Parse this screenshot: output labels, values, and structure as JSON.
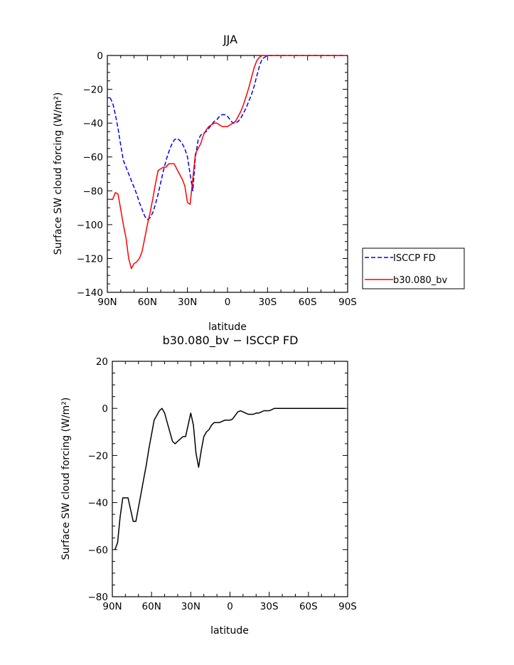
{
  "chart_data": [
    {
      "type": "line",
      "title": "JJA",
      "xlabel": "latitude",
      "ylabel": "Surface SW cloud forcing (W/m²)",
      "xlim": [
        90,
        -90
      ],
      "ylim": [
        -140,
        0
      ],
      "x_ticks": [
        90,
        60,
        30,
        0,
        -30,
        -60,
        -90
      ],
      "x_tick_labels": [
        "90N",
        "60N",
        "30N",
        "0",
        "30S",
        "60S",
        "90S"
      ],
      "y_ticks": [
        0,
        -20,
        -40,
        -60,
        -80,
        -100,
        -120,
        -140
      ],
      "y_tick_labels": [
        "0",
        "−20",
        "−40",
        "−60",
        "−80",
        "−100",
        "−120",
        "−140"
      ],
      "grid": false,
      "legend_position": "outside-right",
      "series": [
        {
          "name": "ISCCP FD",
          "color": "#0000ff",
          "dash": "dashed",
          "x": [
            88,
            86,
            84,
            82,
            80,
            78,
            76,
            74,
            72,
            70,
            68,
            66,
            64,
            62,
            60,
            58,
            56,
            54,
            52,
            50,
            48,
            46,
            44,
            42,
            40,
            38,
            36,
            34,
            32,
            30,
            28,
            26,
            24,
            22,
            20,
            18,
            16,
            14,
            12,
            10,
            8,
            6,
            4,
            2,
            0,
            -2,
            -4,
            -6,
            -8,
            -10,
            -12,
            -14,
            -16,
            -18,
            -20,
            -22,
            -24,
            -26,
            -28,
            -30,
            -32,
            -34,
            -36,
            -38,
            -40,
            -42,
            -44,
            -46,
            -48,
            -50,
            -52,
            -54,
            -56,
            -58,
            -60,
            -62,
            -64,
            -66,
            -68,
            -70,
            -72,
            -74,
            -76,
            -78,
            -80,
            -82,
            -84,
            -86,
            -88
          ],
          "values": [
            -25,
            -28,
            -35,
            -43,
            -53,
            -62,
            -66,
            -70,
            -74,
            -78,
            -82,
            -87,
            -91,
            -95,
            -97,
            -96,
            -93,
            -88,
            -82,
            -75,
            -68,
            -62,
            -57,
            -53,
            -50,
            -49,
            -50,
            -52,
            -55,
            -60,
            -70,
            -80,
            -60,
            -50,
            -47,
            -46,
            -45,
            -43,
            -41,
            -39,
            -38,
            -36,
            -35,
            -35,
            -36,
            -38,
            -40,
            -40,
            -39,
            -37,
            -34,
            -31,
            -27,
            -23,
            -18,
            -12,
            -6,
            -2,
            -1,
            0,
            0,
            0,
            0,
            0,
            0,
            0,
            0,
            0,
            0,
            0,
            0,
            0,
            0,
            0,
            0,
            0,
            0,
            0,
            0,
            0,
            0,
            0,
            0,
            0,
            0,
            0,
            0,
            0,
            0
          ]
        },
        {
          "name": "b30.080_bv",
          "color": "#ff0000",
          "dash": "solid",
          "x": [
            88,
            86,
            84,
            82,
            80,
            78,
            76,
            74,
            72,
            70,
            68,
            66,
            64,
            62,
            60,
            58,
            56,
            54,
            52,
            50,
            48,
            46,
            44,
            42,
            40,
            38,
            36,
            34,
            32,
            30,
            28,
            26,
            24,
            22,
            20,
            18,
            16,
            14,
            12,
            10,
            8,
            6,
            4,
            2,
            0,
            -2,
            -4,
            -6,
            -8,
            -10,
            -12,
            -14,
            -16,
            -18,
            -20,
            -22,
            -24,
            -26,
            -28,
            -30,
            -32,
            -34,
            -36,
            -38,
            -40,
            -42,
            -44,
            -46,
            -48,
            -50,
            -52,
            -54,
            -56,
            -58,
            -60,
            -62,
            -64,
            -66,
            -68,
            -70,
            -72,
            -74,
            -76,
            -78,
            -80,
            -82,
            -84,
            -86,
            -88
          ],
          "values": [
            -85,
            -85,
            -81,
            -82,
            -91,
            -100,
            -108,
            -120,
            -126,
            -123,
            -122,
            -120,
            -116,
            -108,
            -100,
            -93,
            -85,
            -76,
            -68,
            -67,
            -66,
            -66,
            -64,
            -64,
            -64,
            -67,
            -70,
            -73,
            -77,
            -87,
            -88,
            -73,
            -58,
            -55,
            -52,
            -47,
            -44,
            -42,
            -41,
            -40,
            -40,
            -41,
            -42,
            -42,
            -42,
            -41,
            -40,
            -39,
            -36,
            -33,
            -29,
            -24,
            -19,
            -13,
            -7,
            -3,
            -1,
            0,
            0,
            0,
            0,
            0,
            0,
            0,
            0,
            0,
            0,
            0,
            0,
            0,
            0,
            0,
            0,
            0,
            0,
            0,
            0,
            0,
            0,
            0,
            0,
            0,
            0,
            0,
            0,
            0,
            0,
            0,
            0
          ]
        }
      ]
    },
    {
      "type": "line",
      "title": "b30.080_bv − ISCCP FD",
      "xlabel": "latitude",
      "ylabel": "Surface SW cloud forcing (W/m²)",
      "xlim": [
        90,
        -90
      ],
      "ylim": [
        -80,
        20
      ],
      "x_ticks": [
        90,
        60,
        30,
        0,
        -30,
        -60,
        -90
      ],
      "x_tick_labels": [
        "90N",
        "60N",
        "30N",
        "0",
        "30S",
        "60S",
        "90S"
      ],
      "y_ticks": [
        20,
        0,
        -20,
        -40,
        -60,
        -80
      ],
      "y_tick_labels": [
        "20",
        "0",
        "−20",
        "−40",
        "−60",
        "−80"
      ],
      "grid": false,
      "series": [
        {
          "color": "#000000",
          "dash": "solid",
          "x": [
            88,
            86,
            84,
            82,
            80,
            78,
            76,
            74,
            72,
            70,
            68,
            66,
            64,
            62,
            60,
            58,
            56,
            54,
            52,
            50,
            48,
            46,
            44,
            42,
            40,
            38,
            36,
            34,
            32,
            30,
            28,
            26,
            24,
            22,
            20,
            18,
            16,
            14,
            12,
            10,
            8,
            6,
            4,
            2,
            0,
            -2,
            -4,
            -6,
            -8,
            -10,
            -12,
            -14,
            -16,
            -18,
            -20,
            -22,
            -24,
            -26,
            -28,
            -30,
            -32,
            -34,
            -36,
            -38,
            -40,
            -42,
            -44,
            -46,
            -48,
            -50,
            -52,
            -54,
            -56,
            -58,
            -60,
            -62,
            -64,
            -66,
            -68,
            -70,
            -72,
            -74,
            -76,
            -78,
            -80,
            -82,
            -84,
            -86,
            -88
          ],
          "values": [
            -60,
            -57,
            -46,
            -38,
            -38,
            -38,
            -43,
            -48,
            -48,
            -42,
            -36,
            -30,
            -24,
            -17,
            -11,
            -5,
            -3,
            -1,
            0,
            -2,
            -6,
            -10,
            -14,
            -15,
            -14,
            -13,
            -12,
            -12,
            -7,
            -2,
            -7,
            -19,
            -25,
            -18,
            -12,
            -10,
            -9,
            -7,
            -6,
            -6,
            -6,
            -5.5,
            -5,
            -5,
            -5,
            -4.5,
            -3,
            -1.5,
            -1,
            -1.5,
            -2,
            -2.5,
            -2.5,
            -2.5,
            -2,
            -2,
            -1.5,
            -1,
            -1,
            -1,
            -0.5,
            0,
            0,
            0,
            0,
            0,
            0,
            0,
            0,
            0,
            0,
            0,
            0,
            0,
            0,
            0,
            0,
            0,
            0,
            0,
            0,
            0,
            0,
            0,
            0,
            0,
            0,
            0,
            0
          ]
        }
      ]
    }
  ]
}
